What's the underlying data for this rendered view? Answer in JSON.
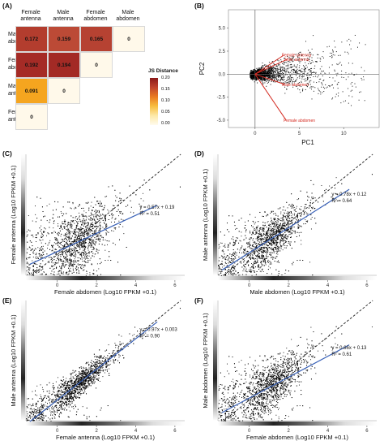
{
  "panel_labels": {
    "a": "(A)",
    "b": "(B)",
    "c": "(C)",
    "d": "(D)",
    "e": "(E)",
    "f": "(F)"
  },
  "chart_data": [
    {
      "id": "A",
      "type": "heatmap",
      "columns": [
        "Female antenna",
        "Male antenna",
        "Female abdomen",
        "Male abdomen"
      ],
      "rows": [
        "Male abdomen",
        "Female abdomen",
        "Male antenna",
        "Female antenna"
      ],
      "cells": [
        [
          "0.172",
          "0.159",
          "0.165",
          "0"
        ],
        [
          "0.192",
          "0.194",
          "0",
          null
        ],
        [
          "0.091",
          "0",
          null,
          null
        ],
        [
          "0",
          null,
          null,
          null
        ]
      ],
      "colors": [
        [
          "#b33d2e",
          "#bc4a36",
          "#b64232",
          "#fff9ea"
        ],
        [
          "#a52b26",
          "#a32a25",
          "#fff9ea",
          null
        ],
        [
          "#f5a51f",
          "#fff9ea",
          null,
          null
        ],
        [
          "#fff9ea",
          null,
          null,
          null
        ]
      ],
      "legend": {
        "title": "JS Distance",
        "ticks": [
          "0.20",
          "0.15",
          "0.10",
          "0.05",
          "0.00"
        ],
        "colors": [
          "#8b1a1a",
          "#c0442d",
          "#ea7a22",
          "#f8be40",
          "#fde9a8",
          "#fffbee"
        ]
      }
    },
    {
      "id": "B",
      "type": "scatter",
      "xlabel": "PC1",
      "ylabel": "PC2",
      "xlim": [
        -3,
        14
      ],
      "ylim": [
        -5.8,
        7
      ],
      "xticks": [
        "0",
        "5",
        "10"
      ],
      "yticks": [
        "5.0",
        "2.5",
        "0.0",
        "-2.5",
        "-5.0"
      ],
      "ytick_values": [
        5,
        2.5,
        0,
        -2.5,
        -5
      ],
      "xtick_values": [
        0,
        5,
        10
      ],
      "loadings": [
        {
          "label": "Female antenna",
          "x": 3.3,
          "y": 2.1
        },
        {
          "label": "Male antenna",
          "x": 3.6,
          "y": 1.6
        },
        {
          "label": "Male abdomen",
          "x": 3.3,
          "y": -1.1
        },
        {
          "label": "Female abdomen",
          "x": 3.5,
          "y": -5.0
        }
      ],
      "point_color": "#000000",
      "arrow_color": "#d42a20"
    },
    {
      "id": "C",
      "type": "scatter",
      "xlabel": "Female abdomen (Log10 FPKM +0.1)",
      "ylabel": "Female antenna (Log10 FPKM +0.1)",
      "xlim": [
        -1.6,
        6.5
      ],
      "ylim": [
        -1.3,
        6.3
      ],
      "xticks": [
        "0",
        "2",
        "4",
        "6"
      ],
      "xtick_values": [
        0,
        2,
        4,
        6
      ],
      "fit": {
        "slope": 0.57,
        "intercept": 0.19,
        "equation": "y = 0.57x + 0.19",
        "r2": "R² = 0.51"
      },
      "fit_color": "#3a62b8"
    },
    {
      "id": "D",
      "type": "scatter",
      "xlabel": "Male abdomen (Log10 FPKM +0.1)",
      "ylabel": "Male antenna (Log10 FPKM +0.1)",
      "xlim": [
        -1.6,
        6.5
      ],
      "ylim": [
        -1.3,
        6.3
      ],
      "xticks": [
        "0",
        "2",
        "4",
        "6"
      ],
      "xtick_values": [
        0,
        2,
        4,
        6
      ],
      "fit": {
        "slope": 0.78,
        "intercept": 0.12,
        "equation": "y = 0.78x + 0.12",
        "r2": "R² = 0.64"
      },
      "fit_color": "#3a62b8"
    },
    {
      "id": "E",
      "type": "scatter",
      "xlabel": "Female antenna (Log10 FPKM +0.1)",
      "ylabel": "Male antenna (Log10 FPKM +0.1)",
      "xlim": [
        -1.6,
        6.5
      ],
      "ylim": [
        -1.3,
        6.3
      ],
      "xticks": [
        "0",
        "2",
        "4",
        "6"
      ],
      "xtick_values": [
        0,
        2,
        4,
        6
      ],
      "fit": {
        "slope": 0.97,
        "intercept": 0.003,
        "equation": "y = 0.97x + 0.003",
        "r2": "R² = 0.90"
      },
      "fit_color": "#3a62b8"
    },
    {
      "id": "F",
      "type": "scatter",
      "xlabel": "Female abdomen (Log10 FPKM +0.1)",
      "ylabel": "Male abdomen (Log10 FPKM +0.1)",
      "xlim": [
        -1.6,
        6.5
      ],
      "ylim": [
        -1.3,
        6.3
      ],
      "xticks": [
        "0",
        "2",
        "4",
        "6"
      ],
      "xtick_values": [
        0,
        2,
        4,
        6
      ],
      "fit": {
        "slope": 0.66,
        "intercept": 0.13,
        "equation": "y = 0.66x + 0.13",
        "r2": "R² = 0.61"
      },
      "fit_color": "#3a62b8"
    }
  ]
}
